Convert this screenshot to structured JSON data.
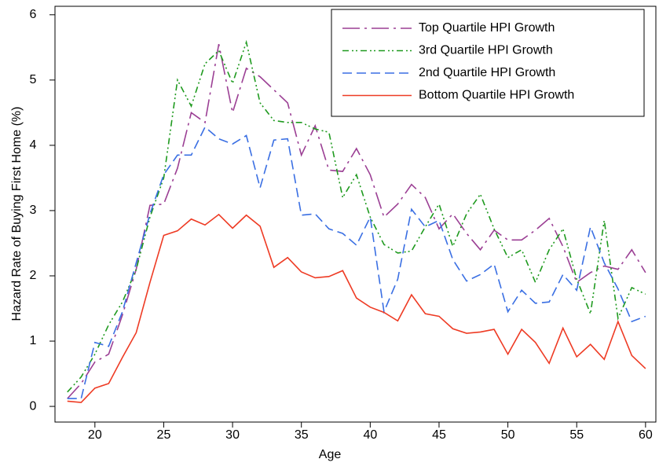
{
  "chart_data": {
    "type": "line",
    "x_label": "Age",
    "y_label": "Hazard Rate of Buying First Home (%)",
    "x": [
      18,
      19,
      20,
      21,
      22,
      23,
      24,
      25,
      26,
      27,
      28,
      29,
      30,
      31,
      32,
      33,
      34,
      35,
      36,
      37,
      38,
      39,
      40,
      41,
      42,
      43,
      44,
      45,
      46,
      47,
      48,
      49,
      50,
      51,
      52,
      53,
      54,
      55,
      56,
      57,
      58,
      59,
      60
    ],
    "series": [
      {
        "name": "Top Quartile HPI Growth",
        "color": "#9b3f94",
        "values": [
          0.12,
          0.35,
          0.68,
          0.8,
          1.4,
          2.1,
          3.08,
          3.1,
          3.65,
          4.5,
          4.35,
          5.55,
          4.5,
          5.18,
          5.05,
          4.85,
          4.65,
          3.85,
          4.3,
          3.62,
          3.6,
          3.95,
          3.55,
          2.9,
          3.1,
          3.4,
          3.2,
          2.72,
          2.95,
          2.65,
          2.4,
          2.7,
          2.55,
          2.55,
          2.7,
          2.88,
          2.45,
          1.9,
          2.05,
          2.15,
          2.1,
          2.4,
          2.05
        ]
      },
      {
        "name": "3rd Quartile HPI Growth",
        "color": "#1f9a1f",
        "values": [
          0.22,
          0.45,
          0.8,
          1.25,
          1.6,
          2.1,
          2.9,
          3.5,
          5.0,
          4.6,
          5.25,
          5.45,
          4.95,
          5.58,
          4.65,
          4.38,
          4.35,
          4.35,
          4.25,
          4.2,
          3.2,
          3.55,
          2.9,
          2.48,
          2.35,
          2.38,
          2.75,
          3.1,
          2.45,
          2.95,
          3.25,
          2.72,
          2.28,
          2.4,
          1.9,
          2.4,
          2.72,
          1.95,
          1.42,
          2.85,
          1.35,
          1.82,
          1.72
        ]
      },
      {
        "name": "2nd Quartile HPI Growth",
        "color": "#3a6fe3",
        "values": [
          0.12,
          0.12,
          0.98,
          0.92,
          1.45,
          2.2,
          2.95,
          3.55,
          3.85,
          3.85,
          4.28,
          4.1,
          4.02,
          4.15,
          3.35,
          4.08,
          4.1,
          2.93,
          2.95,
          2.72,
          2.65,
          2.47,
          2.9,
          1.45,
          1.95,
          3.02,
          2.75,
          2.85,
          2.25,
          1.92,
          2.02,
          2.18,
          1.45,
          1.78,
          1.58,
          1.6,
          2.02,
          1.78,
          2.75,
          2.2,
          1.8,
          1.3,
          1.38
        ]
      },
      {
        "name": "Bottom Quartile HPI Growth",
        "color": "#ee3b24",
        "values": [
          0.08,
          0.06,
          0.28,
          0.35,
          0.75,
          1.13,
          1.9,
          2.62,
          2.69,
          2.87,
          2.78,
          2.94,
          2.73,
          2.93,
          2.76,
          2.13,
          2.28,
          2.06,
          1.97,
          1.99,
          2.08,
          1.66,
          1.52,
          1.44,
          1.31,
          1.71,
          1.42,
          1.38,
          1.19,
          1.12,
          1.14,
          1.18,
          0.8,
          1.18,
          0.98,
          0.66,
          1.2,
          0.76,
          0.95,
          0.72,
          1.3,
          0.78,
          0.58
        ]
      }
    ],
    "xlim": [
      17.1,
      60.75
    ],
    "xticks": [
      20,
      25,
      30,
      35,
      40,
      45,
      50,
      55,
      60
    ],
    "ylim": [
      -0.24,
      6.13
    ],
    "yticks": [
      0,
      1,
      2,
      3,
      4,
      5,
      6
    ],
    "legend": "upper right"
  }
}
